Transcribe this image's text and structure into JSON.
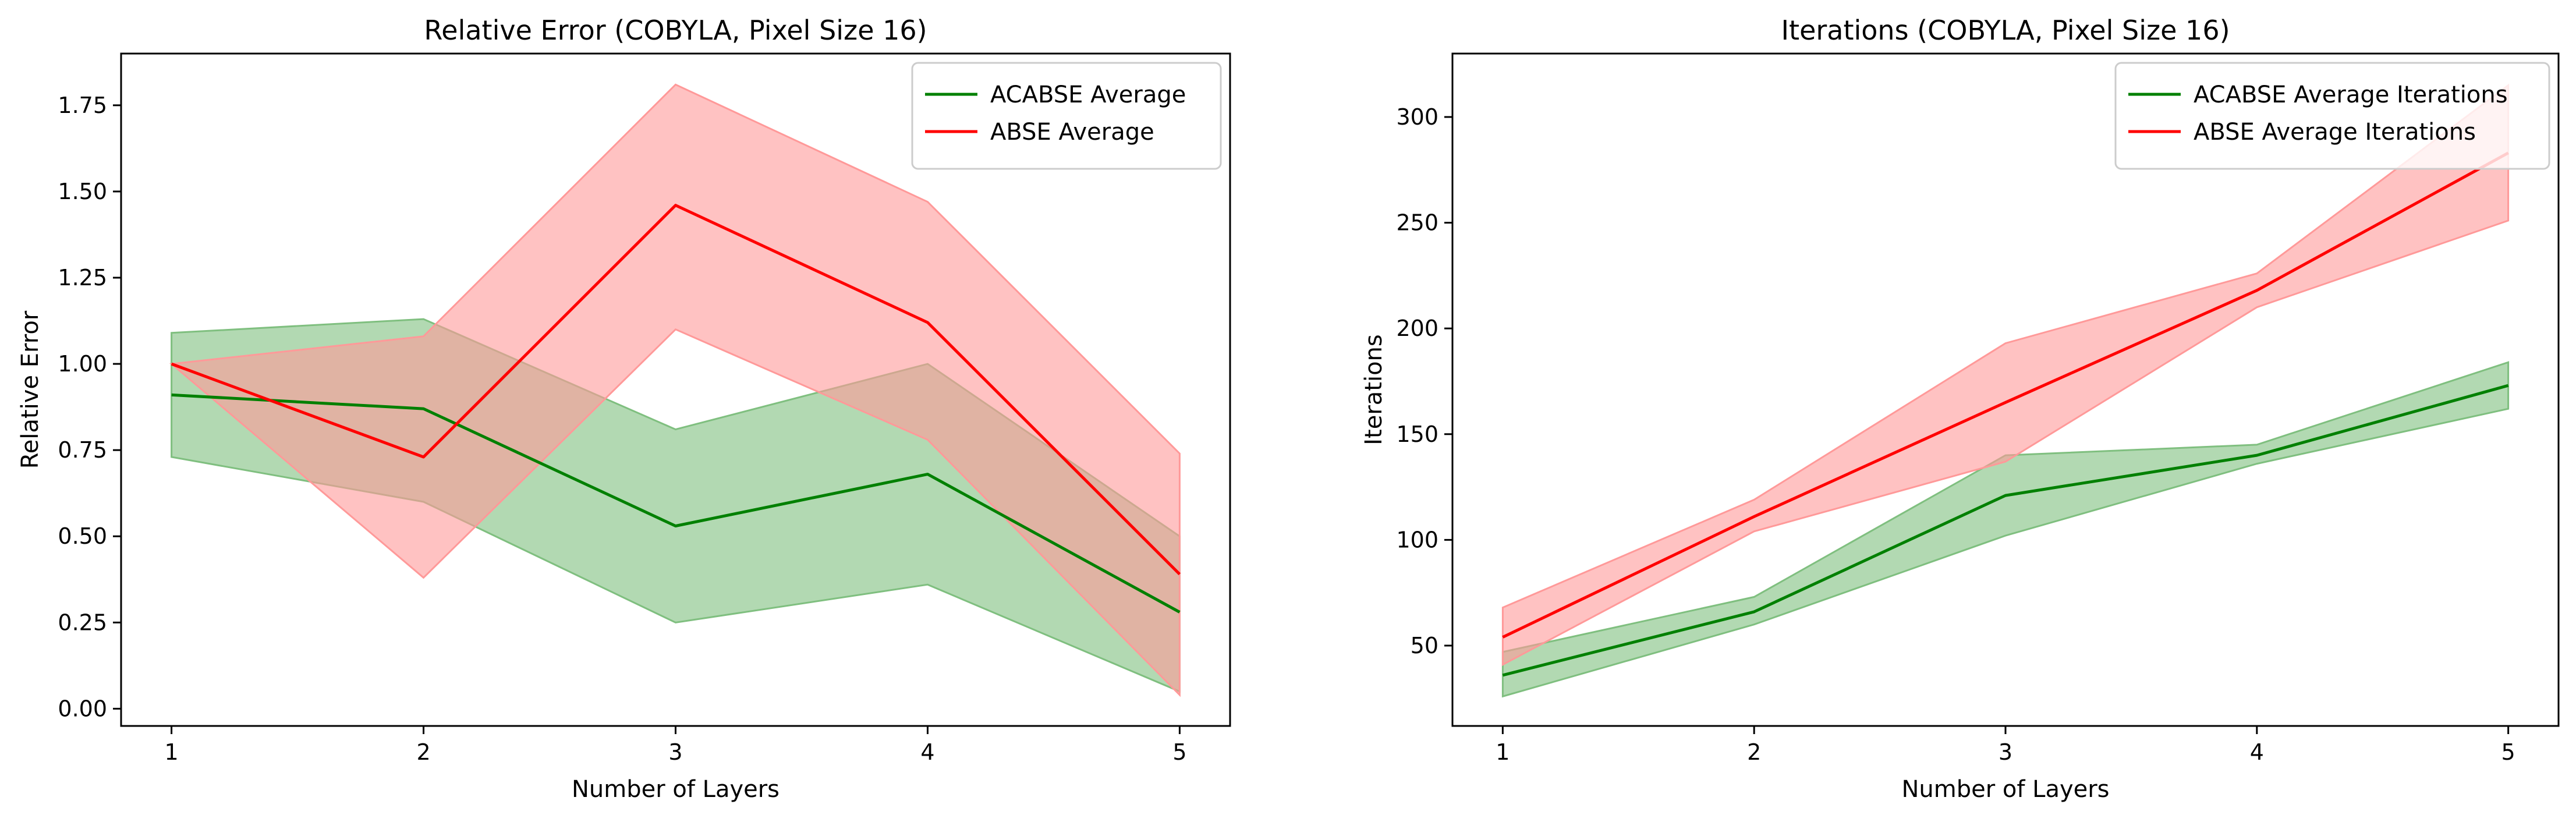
{
  "chart_data": [
    {
      "type": "line",
      "title": "Relative Error (COBYLA, Pixel Size 16)",
      "xlabel": "Number of Layers",
      "ylabel": "Relative Error",
      "x": [
        1,
        2,
        3,
        4,
        5
      ],
      "xticks": [
        "1",
        "2",
        "3",
        "4",
        "5"
      ],
      "yticks": [
        "0.00",
        "0.25",
        "0.50",
        "0.75",
        "1.00",
        "1.25",
        "1.50",
        "1.75"
      ],
      "xlim": [
        0.8,
        5.2
      ],
      "ylim": [
        -0.05,
        1.9
      ],
      "grid": false,
      "legend_position": "top-right",
      "series": [
        {
          "name": "ACABSE Average",
          "color": "#008000",
          "band_color": "#7fbf7f",
          "values": [
            0.91,
            0.87,
            0.53,
            0.68,
            0.28
          ],
          "lower": [
            0.73,
            0.6,
            0.25,
            0.36,
            0.05
          ],
          "upper": [
            1.09,
            1.13,
            0.81,
            1.0,
            0.5
          ]
        },
        {
          "name": "ABSE Average",
          "color": "#ff0000",
          "band_color": "#ff9999",
          "values": [
            1.0,
            0.73,
            1.46,
            1.12,
            0.39
          ],
          "lower": [
            1.0,
            0.38,
            1.1,
            0.78,
            0.04
          ],
          "upper": [
            1.0,
            1.08,
            1.81,
            1.47,
            0.74
          ]
        }
      ]
    },
    {
      "type": "line",
      "title": "Iterations (COBYLA, Pixel Size 16)",
      "xlabel": "Number of Layers",
      "ylabel": "Iterations",
      "x": [
        1,
        2,
        3,
        4,
        5
      ],
      "xticks": [
        "1",
        "2",
        "3",
        "4",
        "5"
      ],
      "yticks": [
        "50",
        "100",
        "150",
        "200",
        "250",
        "300"
      ],
      "xlim": [
        0.8,
        5.2
      ],
      "ylim": [
        12,
        330
      ],
      "grid": false,
      "legend_position": "top-right",
      "series": [
        {
          "name": "ACABSE Average Iterations",
          "color": "#008000",
          "band_color": "#7fbf7f",
          "values": [
            36,
            66,
            121,
            140,
            173
          ],
          "lower": [
            26,
            60,
            102,
            136,
            162
          ],
          "upper": [
            47,
            73,
            140,
            145,
            184
          ]
        },
        {
          "name": "ABSE Average Iterations",
          "color": "#ff0000",
          "band_color": "#ff9999",
          "values": [
            54,
            111,
            165,
            218,
            283
          ],
          "lower": [
            41,
            104,
            137,
            210,
            251
          ],
          "upper": [
            68,
            119,
            193,
            226,
            315
          ]
        }
      ]
    }
  ]
}
